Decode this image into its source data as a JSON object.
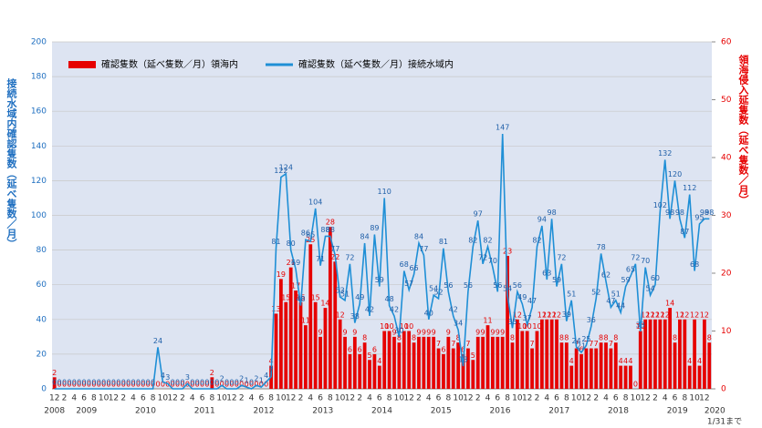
{
  "chart_data": {
    "type": "bar_line",
    "legend": "top-left",
    "grid": true,
    "y_label": "接続水域内確認隻数（延べ隻数／月）",
    "y2_label": "領海侵入延隻数（延べ隻数／月）",
    "note": "1/31まで",
    "ylim": [
      0,
      200
    ],
    "yticks": [
      0,
      20,
      40,
      60,
      80,
      100,
      120,
      140,
      160,
      180,
      200
    ],
    "y2lim": [
      0,
      60
    ],
    "y2ticks": [
      0,
      10,
      20,
      30,
      40,
      50,
      60
    ],
    "years": [
      "2008",
      "2009",
      "2010",
      "2011",
      "2012",
      "2013",
      "2014",
      "2015",
      "2016",
      "2017",
      "2018",
      "2019",
      "2020"
    ],
    "categories": [
      "12",
      null,
      "2",
      null,
      "4",
      null,
      "6",
      null,
      "8",
      null,
      "10",
      null,
      "12",
      null,
      "2",
      null,
      "4",
      null,
      "6",
      null,
      "8",
      null,
      "10",
      null,
      "12",
      null,
      "2",
      null,
      "4",
      null,
      "6",
      null,
      "8",
      null,
      "10",
      null,
      "12",
      null,
      "2",
      null,
      "4",
      null,
      "6",
      null,
      "8",
      null,
      "10",
      null,
      "12",
      null,
      "2",
      null,
      "4",
      null,
      "6",
      null,
      "8",
      null,
      "10",
      null,
      "12",
      null,
      "2",
      null,
      "4",
      null,
      "6",
      null,
      "8",
      null,
      "10",
      null,
      "12",
      null,
      "2",
      null,
      "4",
      null,
      "6",
      null,
      "8",
      null,
      "10",
      null,
      "12",
      null,
      "2",
      null,
      "4",
      null,
      "6",
      null,
      "8",
      null,
      "10",
      null,
      "12",
      null,
      "2",
      null,
      "4",
      null,
      "6",
      null,
      "8",
      null,
      "10",
      null,
      "12",
      null,
      "2",
      null,
      "4",
      null,
      "6",
      null,
      "8",
      null,
      "10",
      null,
      "12",
      null,
      "2",
      null,
      "4",
      null,
      "6",
      null,
      "8",
      null,
      "10",
      null,
      "12",
      null
    ],
    "series": [
      {
        "name": "確認隻数（延べ隻数／月）領海内",
        "color": "#e60000",
        "kind": "bar",
        "axis": "y2",
        "values": [
          2,
          0,
          0,
          0,
          0,
          0,
          0,
          0,
          0,
          0,
          0,
          0,
          0,
          0,
          0,
          0,
          0,
          0,
          0,
          0,
          0,
          0,
          0,
          0,
          0,
          0,
          0,
          0,
          0,
          0,
          0,
          0,
          2,
          0,
          0,
          0,
          0,
          0,
          0,
          0,
          0,
          0,
          0,
          0,
          4,
          13,
          19,
          15,
          21,
          17,
          15,
          11,
          25,
          15,
          9,
          14,
          28,
          22,
          12,
          9,
          6,
          9,
          6,
          8,
          5,
          6,
          4,
          10,
          10,
          9,
          8,
          10,
          10,
          8,
          9,
          9,
          9,
          9,
          7,
          6,
          9,
          7,
          8,
          6,
          7,
          5,
          9,
          9,
          11,
          9,
          9,
          9,
          23,
          8,
          12,
          10,
          10,
          7,
          10,
          12,
          12,
          12,
          12,
          8,
          8,
          4,
          7,
          6,
          7,
          7,
          7,
          8,
          8,
          7,
          8,
          4,
          4,
          4,
          0,
          10,
          12,
          12,
          12,
          12,
          12,
          14,
          8,
          12,
          12,
          4,
          12,
          4,
          12,
          8
        ]
      },
      {
        "name": "確認隻数（延べ隻数／月）接続水域内",
        "color": "#1f8fd6",
        "kind": "line",
        "values": [
          0,
          0,
          0,
          0,
          0,
          0,
          0,
          0,
          0,
          0,
          0,
          0,
          0,
          0,
          0,
          0,
          0,
          0,
          0,
          0,
          0,
          24,
          4,
          3,
          0,
          0,
          0,
          3,
          0,
          0,
          0,
          0,
          0,
          0,
          2,
          0,
          0,
          0,
          2,
          1,
          0,
          2,
          1,
          4,
          7,
          81,
          122,
          124,
          80,
          69,
          48,
          86,
          85,
          104,
          71,
          88,
          88,
          77,
          53,
          51,
          72,
          38,
          49,
          84,
          42,
          89,
          59,
          110,
          48,
          42,
          30,
          68,
          57,
          66,
          84,
          77,
          40,
          54,
          52,
          81,
          56,
          42,
          34,
          13,
          56,
          82,
          97,
          72,
          82,
          70,
          56,
          147,
          54,
          35,
          56,
          49,
          37,
          47,
          82,
          94,
          63,
          98,
          59,
          72,
          39,
          51,
          24,
          21,
          25,
          36,
          52,
          78,
          62,
          47,
          51,
          44,
          59,
          65,
          72,
          33,
          70,
          54,
          60,
          102,
          132,
          98,
          120,
          98,
          87,
          112,
          68,
          95,
          98,
          98
        ]
      }
    ]
  }
}
